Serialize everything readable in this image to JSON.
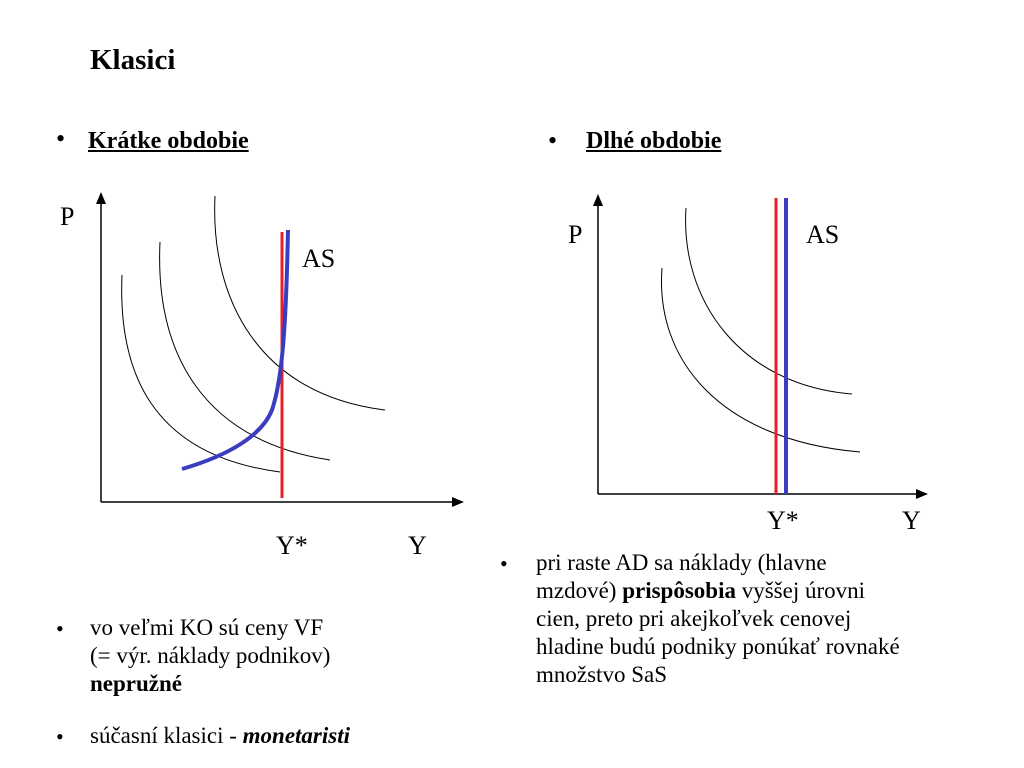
{
  "title": "Klasici",
  "left": {
    "heading": "Krátke obdobie",
    "p_label": "P",
    "as_label": "AS",
    "ystar_label": "Y*",
    "y_label": "Y",
    "note1_line1": "vo veľmi KO sú ceny VF",
    "note1_line2": "(= výr. náklady podnikov)",
    "note1_bold": "nepružné",
    "note2_text": "súčasní klasici - ",
    "note2_bolditalic": "monetaristi"
  },
  "right": {
    "heading": "Dlhé obdobie",
    "p_label": "P",
    "as_label": "AS",
    "ystar_label": "Y*",
    "y_label": "Y",
    "note_line1": "pri raste AD sa náklady (hlavne",
    "note_line2_start": "mzdové) ",
    "note_line2_bold": "prispôsobia",
    "note_line2_end": " vyššej úrovni",
    "note_line3": "cien, preto pri akejkoľvek cenovej",
    "note_line4": "hladine budú podniky ponúkať rovnaké",
    "note_line5": "množstvo SaS"
  },
  "colors": {
    "red_line": "#e8202a",
    "blue_line": "#3a3dc0",
    "axis": "#000000"
  }
}
